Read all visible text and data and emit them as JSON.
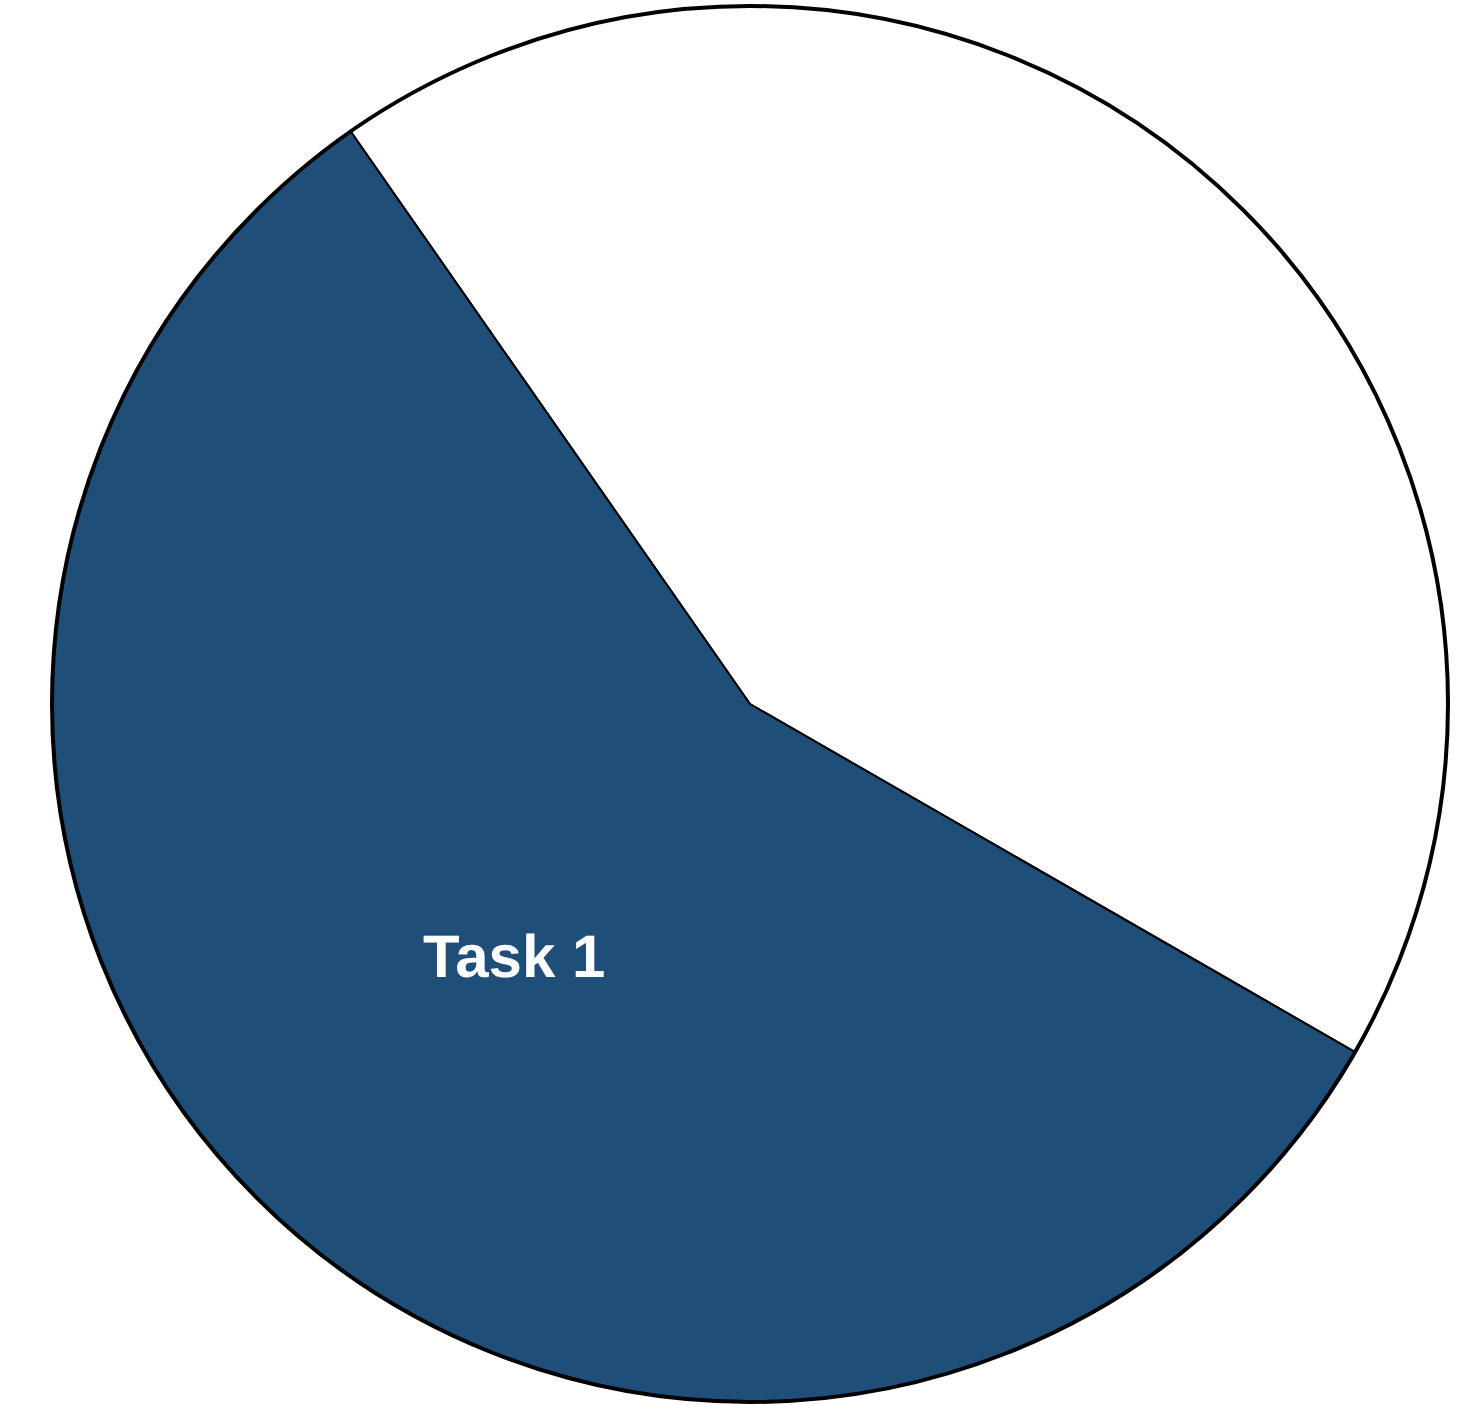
{
  "chart_data": {
    "type": "pie",
    "categories": [
      null,
      "Task 1"
    ],
    "values": [
      43,
      57
    ],
    "colors": [
      "#ffffff",
      "#1f4e79"
    ]
  }
}
